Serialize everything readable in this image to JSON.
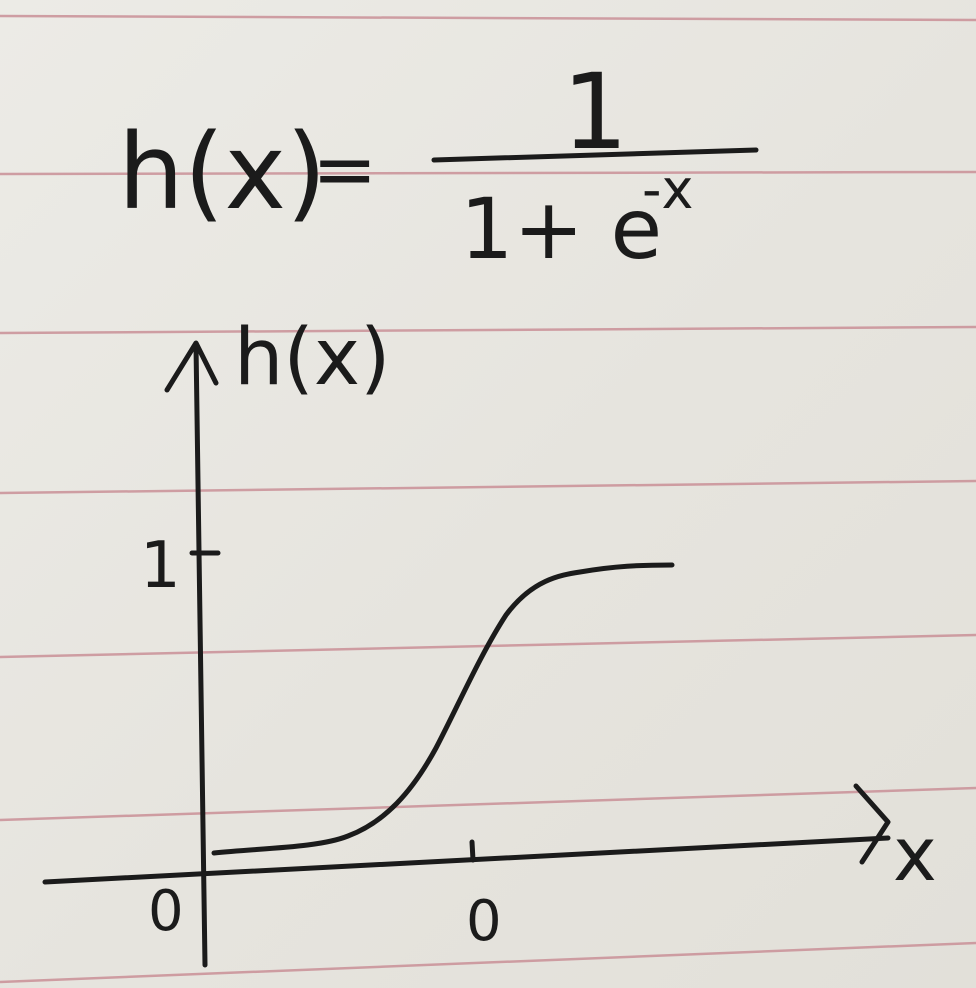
{
  "formula": {
    "lhs": "h(x)",
    "equals": "=",
    "numerator": "1",
    "denominator_base": "1+ e",
    "denominator_exponent": "-x"
  },
  "graph": {
    "y_axis_label": "h(x)",
    "x_axis_label": "x",
    "y_tick_label": "1",
    "origin_label": "0",
    "x_tick_label": "0"
  },
  "paper": {
    "background": "#e9e7e1",
    "rule_color": "#c98f97",
    "ink_color": "#1b1b1b"
  }
}
